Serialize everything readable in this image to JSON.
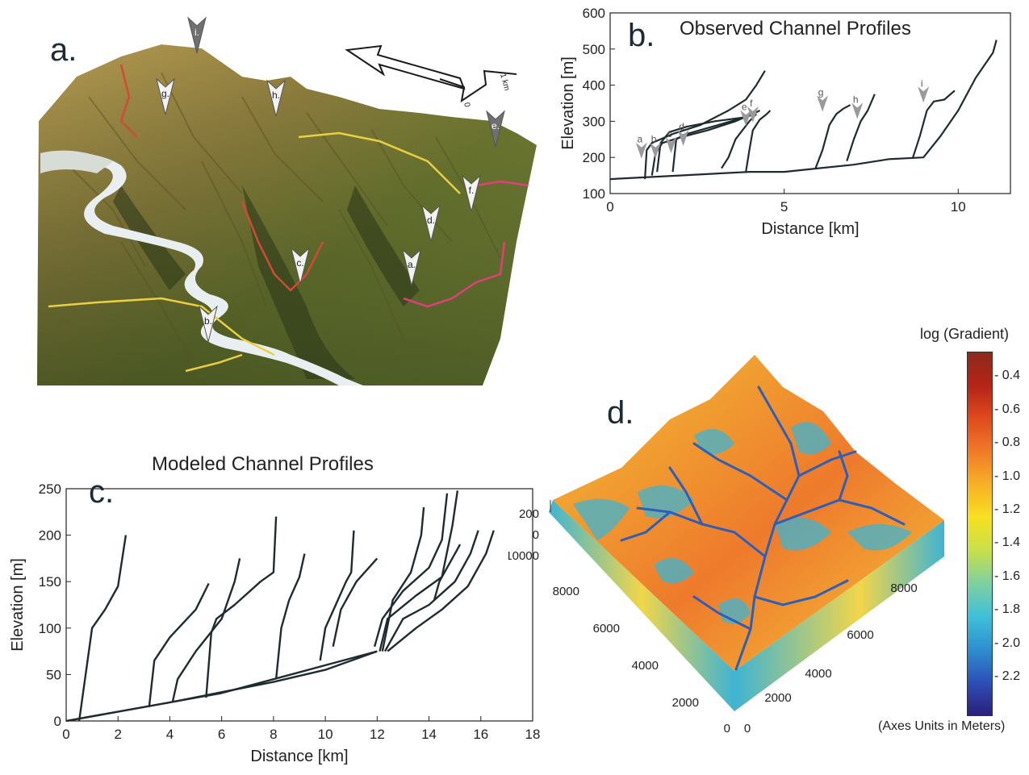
{
  "panel_letters": {
    "a": "a.",
    "b": "b.",
    "c": "c.",
    "d": "d."
  },
  "photo": {
    "markers": [
      {
        "label": "a.",
        "tone": "light"
      },
      {
        "label": "b.",
        "tone": "light"
      },
      {
        "label": "c.",
        "tone": "light"
      },
      {
        "label": "d.",
        "tone": "light"
      },
      {
        "label": "e.",
        "tone": "dark"
      },
      {
        "label": "f.",
        "tone": "light"
      },
      {
        "label": "g.",
        "tone": "light"
      },
      {
        "label": "h.",
        "tone": "light"
      },
      {
        "label": "i.",
        "tone": "dark"
      }
    ],
    "scale_label": "1 km",
    "scale_zero": "0",
    "colors": {
      "sky": "#ffffff",
      "rock": "#8a7a45",
      "vegetation": "#5f7a2c",
      "river": "#e8eef0",
      "trace_red": "#d04a3a",
      "trace_yellow": "#e8d040",
      "trace_pink": "#e0407a"
    }
  },
  "chart_data": [
    {
      "id": "b",
      "type": "line",
      "title": "Observed Channel Profiles",
      "xlabel": "Distance [km]",
      "ylabel": "Elevation [m]",
      "xlim": [
        0,
        11.5
      ],
      "ylim": [
        100,
        600
      ],
      "xticks": [
        0,
        5,
        10
      ],
      "yticks": [
        100,
        200,
        300,
        400,
        500,
        600
      ],
      "series": [
        {
          "x": [
            0,
            2,
            4,
            5,
            6,
            7,
            8,
            9,
            9.5,
            10,
            10.5,
            11,
            11.1
          ],
          "y": [
            140,
            150,
            160,
            160,
            170,
            180,
            195,
            200,
            260,
            330,
            420,
            490,
            525
          ]
        },
        {
          "x": [
            1.0,
            1.05,
            1.2,
            1.8,
            2.6,
            3.4,
            3.9,
            4.2,
            4.45
          ],
          "y": [
            140,
            220,
            240,
            265,
            290,
            330,
            360,
            400,
            440
          ]
        },
        {
          "x": [
            1.2,
            1.3,
            1.5,
            2.0,
            2.8,
            3.6,
            4.2
          ],
          "y": [
            150,
            210,
            240,
            255,
            275,
            300,
            325
          ]
        },
        {
          "x": [
            1.35,
            1.45,
            1.7,
            2.2,
            3.0,
            3.8,
            4.0
          ],
          "y": [
            160,
            240,
            270,
            285,
            300,
            310,
            320
          ]
        },
        {
          "x": [
            1.8,
            1.9,
            2.1,
            2.6,
            3.3,
            4.0,
            4.3
          ],
          "y": [
            160,
            250,
            262,
            276,
            295,
            315,
            330
          ]
        },
        {
          "x": [
            3.2,
            3.4,
            3.6,
            3.8,
            4.0,
            4.2
          ],
          "y": [
            170,
            200,
            250,
            275,
            300,
            320
          ]
        },
        {
          "x": [
            3.9,
            4.0,
            4.1,
            4.3,
            4.5,
            4.6
          ],
          "y": [
            160,
            220,
            275,
            305,
            320,
            330
          ]
        },
        {
          "x": [
            5.9,
            6.1,
            6.3,
            6.5,
            6.7,
            6.9
          ],
          "y": [
            170,
            220,
            290,
            320,
            335,
            345
          ]
        },
        {
          "x": [
            6.8,
            7.0,
            7.2,
            7.4,
            7.6
          ],
          "y": [
            190,
            250,
            300,
            330,
            375
          ]
        },
        {
          "x": [
            8.7,
            8.9,
            9.1,
            9.3,
            9.6,
            9.9
          ],
          "y": [
            200,
            260,
            330,
            355,
            360,
            385
          ]
        }
      ],
      "annotations": [
        "a",
        "b",
        "c",
        "d",
        "e",
        "f",
        "g",
        "h",
        "i"
      ]
    },
    {
      "id": "c",
      "type": "line",
      "title": "Modeled Channel Profiles",
      "xlabel": "Distance [km]",
      "ylabel": "Elevation [m]",
      "xlim": [
        0,
        18
      ],
      "ylim": [
        0,
        250
      ],
      "xticks": [
        0,
        2,
        4,
        6,
        8,
        10,
        12,
        14,
        16,
        18
      ],
      "yticks": [
        0,
        50,
        100,
        150,
        200,
        250
      ],
      "series": [
        {
          "x": [
            0,
            2,
            4,
            6,
            8,
            10,
            12
          ],
          "y": [
            0,
            10,
            20,
            30,
            45,
            60,
            75
          ]
        },
        {
          "x": [
            0,
            4,
            8,
            10,
            12
          ],
          "y": [
            0,
            20,
            42,
            55,
            75
          ]
        },
        {
          "x": [
            0.5,
            0.8,
            1.0,
            1.5,
            2.0,
            2.3
          ],
          "y": [
            0,
            60,
            100,
            120,
            145,
            200
          ]
        },
        {
          "x": [
            3.2,
            3.4,
            4.0,
            5.0,
            5.5
          ],
          "y": [
            15,
            65,
            90,
            120,
            148
          ]
        },
        {
          "x": [
            4.1,
            4.3,
            5.0,
            6.0,
            6.5,
            6.7
          ],
          "y": [
            20,
            45,
            75,
            110,
            150,
            175
          ]
        },
        {
          "x": [
            5.4,
            5.6,
            5.8,
            6.5,
            7.5,
            8.0,
            8.1
          ],
          "y": [
            25,
            95,
            110,
            125,
            150,
            160,
            220
          ]
        },
        {
          "x": [
            8.1,
            8.3,
            8.6,
            9.0,
            9.2
          ],
          "y": [
            45,
            100,
            130,
            155,
            180
          ]
        },
        {
          "x": [
            9.8,
            10.0,
            10.4,
            10.8,
            11.0,
            11.1
          ],
          "y": [
            65,
            100,
            125,
            150,
            160,
            205
          ]
        },
        {
          "x": [
            10.3,
            10.6,
            11.2,
            12.0
          ],
          "y": [
            80,
            120,
            150,
            175
          ]
        },
        {
          "x": [
            12.2,
            12.6,
            13.3,
            13.7,
            13.8
          ],
          "y": [
            75,
            130,
            160,
            200,
            230
          ]
        },
        {
          "x": [
            11.9,
            12.2,
            13.0,
            14.0,
            14.5,
            14.7
          ],
          "y": [
            80,
            110,
            140,
            165,
            195,
            245
          ]
        },
        {
          "x": [
            12.1,
            12.4,
            13.5,
            14.5,
            14.9,
            15.1
          ],
          "y": [
            75,
            110,
            135,
            155,
            210,
            248
          ]
        },
        {
          "x": [
            12.3,
            13.0,
            14.0,
            15.0,
            15.6,
            15.9
          ],
          "y": [
            75,
            110,
            125,
            150,
            180,
            205
          ]
        },
        {
          "x": [
            12.4,
            13.5,
            14.5,
            15.5,
            16.2,
            16.5
          ],
          "y": [
            75,
            100,
            120,
            145,
            180,
            205
          ]
        },
        {
          "x": [
            14.2,
            14.4,
            15.2
          ],
          "y": [
            130,
            150,
            190
          ]
        }
      ]
    },
    {
      "id": "d",
      "type": "heatmap",
      "colorbar_title": "log (Gradient)",
      "colorbar_ticks": [
        "- 0.4",
        "- 0.6",
        "- 0.8",
        "- 1.0",
        "- 1.2",
        "- 1.4",
        "- 1.6",
        "- 1.8",
        "- 2.0",
        "- 2.2"
      ],
      "colorbar_note": "(Axes Units in Meters)",
      "colorbar_colors": [
        "#2a1f7a",
        "#2d4fb8",
        "#2e8fd0",
        "#3fc0d8",
        "#7fd0a0",
        "#c8e04a",
        "#f8e020",
        "#f8b028",
        "#f07a28",
        "#e04a1c",
        "#b42418",
        "#8c2a1a"
      ],
      "z_ticks": [
        "200",
        "0"
      ],
      "left_axis_ticks": [
        "10000",
        "8000",
        "6000",
        "4000",
        "2000",
        "0"
      ],
      "right_axis_ticks": [
        "8000",
        "6000",
        "4000",
        "2000",
        "0"
      ]
    }
  ]
}
